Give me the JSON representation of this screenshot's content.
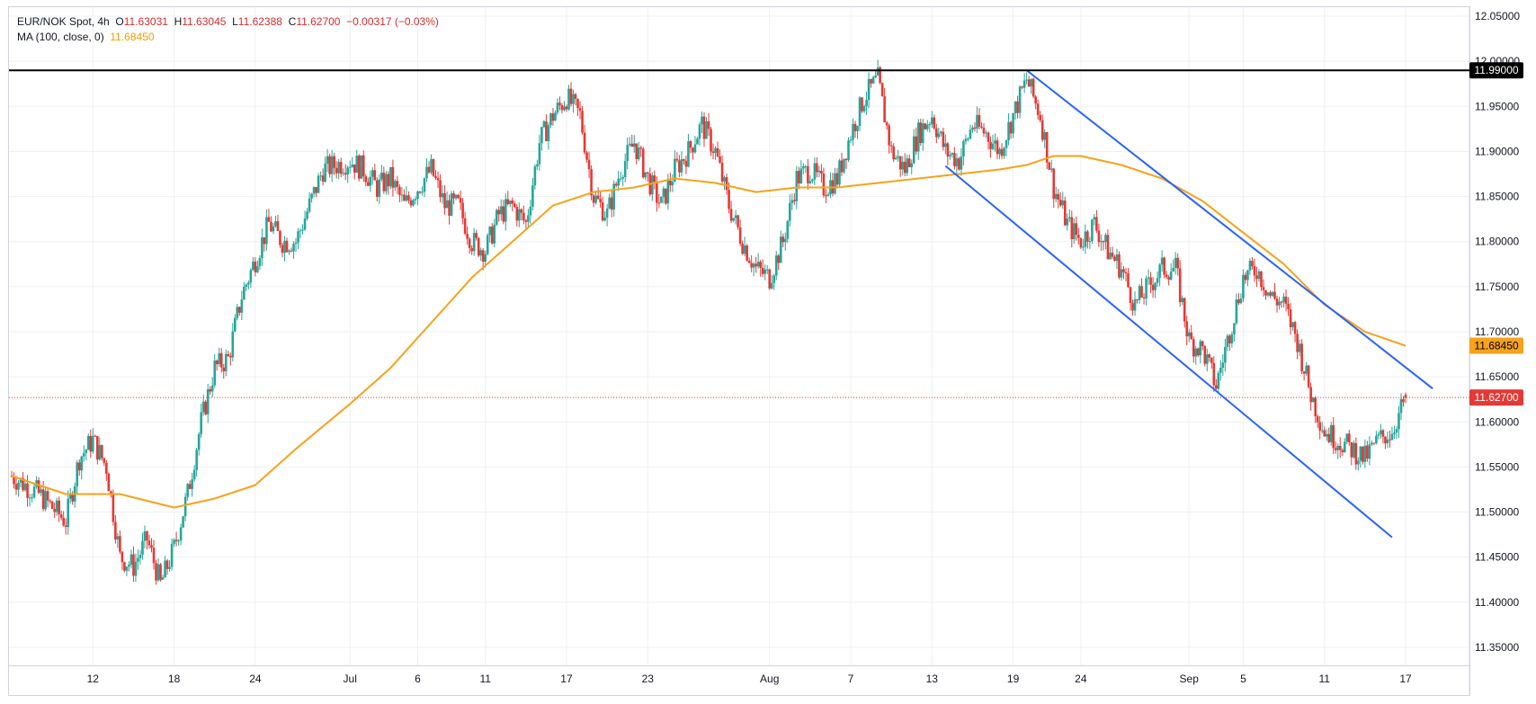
{
  "header": {
    "symbol": "EUR/NOK Spot",
    "interval": "4h",
    "open_label": "O",
    "open": "11.63031",
    "high_label": "H",
    "high": "11.63045",
    "low_label": "L",
    "low": "11.62388",
    "close_label": "C",
    "close": "11.62700",
    "change": "−0.00317 (−0.03%)",
    "ma_label": "MA (100, close, 0)",
    "ma_value": "11.68450"
  },
  "colors": {
    "up": "#26a69a",
    "down": "#e53935",
    "ma": "#f7a21b",
    "channel": "#2962ff",
    "resistance": "#000000",
    "last_price": "#e53935",
    "grid": "#eef0f3",
    "axis_text": "#131722"
  },
  "chart_data": {
    "type": "candlestick",
    "title": "EUR/NOK Spot, 4h",
    "ylim": [
      11.33,
      12.06
    ],
    "y_ticks": [
      "12.05000",
      "12.00000",
      "11.95000",
      "11.90000",
      "11.85000",
      "11.80000",
      "11.75000",
      "11.70000",
      "11.65000",
      "11.60000",
      "11.55000",
      "11.50000",
      "11.45000",
      "11.40000",
      "11.35000"
    ],
    "x_ticks": [
      {
        "label": "12",
        "date": "2024-06-12"
      },
      {
        "label": "18",
        "date": "2024-06-18"
      },
      {
        "label": "24",
        "date": "2024-06-24"
      },
      {
        "label": "Jul",
        "date": "2024-07-01"
      },
      {
        "label": "6",
        "date": "2024-07-06"
      },
      {
        "label": "11",
        "date": "2024-07-11"
      },
      {
        "label": "17",
        "date": "2024-07-17"
      },
      {
        "label": "23",
        "date": "2024-07-23"
      },
      {
        "label": "Aug",
        "date": "2024-08-01"
      },
      {
        "label": "7",
        "date": "2024-08-07"
      },
      {
        "label": "13",
        "date": "2024-08-13"
      },
      {
        "label": "19",
        "date": "2024-08-19"
      },
      {
        "label": "24",
        "date": "2024-08-24"
      },
      {
        "label": "Sep",
        "date": "2024-09-01"
      },
      {
        "label": "5",
        "date": "2024-09-05"
      },
      {
        "label": "11",
        "date": "2024-09-11"
      },
      {
        "label": "17",
        "date": "2024-09-17"
      }
    ],
    "price_path": [
      [
        "2024-06-06",
        11.54
      ],
      [
        "2024-06-08",
        11.52
      ],
      [
        "2024-06-10",
        11.49
      ],
      [
        "2024-06-11",
        11.56
      ],
      [
        "2024-06-12",
        11.58
      ],
      [
        "2024-06-13",
        11.55
      ],
      [
        "2024-06-14",
        11.45
      ],
      [
        "2024-06-15",
        11.44
      ],
      [
        "2024-06-16",
        11.47
      ],
      [
        "2024-06-17",
        11.42
      ],
      [
        "2024-06-18",
        11.46
      ],
      [
        "2024-06-19",
        11.52
      ],
      [
        "2024-06-20",
        11.6
      ],
      [
        "2024-06-21",
        11.66
      ],
      [
        "2024-06-22",
        11.67
      ],
      [
        "2024-06-23",
        11.74
      ],
      [
        "2024-06-25",
        11.82
      ],
      [
        "2024-06-26",
        11.8
      ],
      [
        "2024-06-27",
        11.8
      ],
      [
        "2024-06-28",
        11.84
      ],
      [
        "2024-06-29",
        11.88
      ],
      [
        "2024-07-01",
        11.89
      ],
      [
        "2024-07-02",
        11.88
      ],
      [
        "2024-07-03",
        11.86
      ],
      [
        "2024-07-04",
        11.87
      ],
      [
        "2024-07-05",
        11.84
      ],
      [
        "2024-07-06",
        11.86
      ],
      [
        "2024-07-07",
        11.88
      ],
      [
        "2024-07-08",
        11.84
      ],
      [
        "2024-07-09",
        11.84
      ],
      [
        "2024-07-10",
        11.8
      ],
      [
        "2024-07-11",
        11.79
      ],
      [
        "2024-07-12",
        11.83
      ],
      [
        "2024-07-13",
        11.84
      ],
      [
        "2024-07-14",
        11.82
      ],
      [
        "2024-07-15",
        11.91
      ],
      [
        "2024-07-16",
        11.94
      ],
      [
        "2024-07-17",
        11.96
      ],
      [
        "2024-07-18",
        11.94
      ],
      [
        "2024-07-19",
        11.85
      ],
      [
        "2024-07-20",
        11.83
      ],
      [
        "2024-07-21",
        11.88
      ],
      [
        "2024-07-22",
        11.91
      ],
      [
        "2024-07-23",
        11.87
      ],
      [
        "2024-07-24",
        11.84
      ],
      [
        "2024-07-25",
        11.88
      ],
      [
        "2024-07-26",
        11.9
      ],
      [
        "2024-07-27",
        11.93
      ],
      [
        "2024-07-28",
        11.9
      ],
      [
        "2024-07-29",
        11.84
      ],
      [
        "2024-07-30",
        11.8
      ],
      [
        "2024-07-31",
        11.77
      ],
      [
        "2024-08-01",
        11.76
      ],
      [
        "2024-08-02",
        11.8
      ],
      [
        "2024-08-03",
        11.87
      ],
      [
        "2024-08-04",
        11.88
      ],
      [
        "2024-08-05",
        11.86
      ],
      [
        "2024-08-06",
        11.87
      ],
      [
        "2024-08-07",
        11.92
      ],
      [
        "2024-08-08",
        11.96
      ],
      [
        "2024-08-09",
        11.98
      ],
      [
        "2024-08-10",
        11.9
      ],
      [
        "2024-08-11",
        11.88
      ],
      [
        "2024-08-12",
        11.92
      ],
      [
        "2024-08-13",
        11.94
      ],
      [
        "2024-08-14",
        11.9
      ],
      [
        "2024-08-15",
        11.89
      ],
      [
        "2024-08-16",
        11.93
      ],
      [
        "2024-08-17",
        11.92
      ],
      [
        "2024-08-18",
        11.9
      ],
      [
        "2024-08-19",
        11.94
      ],
      [
        "2024-08-20",
        11.98
      ],
      [
        "2024-08-21",
        11.94
      ],
      [
        "2024-08-22",
        11.86
      ],
      [
        "2024-08-23",
        11.82
      ],
      [
        "2024-08-24",
        11.8
      ],
      [
        "2024-08-25",
        11.82
      ],
      [
        "2024-08-26",
        11.79
      ],
      [
        "2024-08-27",
        11.77
      ],
      [
        "2024-08-28",
        11.73
      ],
      [
        "2024-08-29",
        11.75
      ],
      [
        "2024-08-30",
        11.77
      ],
      [
        "2024-08-31",
        11.77
      ],
      [
        "2024-09-01",
        11.69
      ],
      [
        "2024-09-02",
        11.68
      ],
      [
        "2024-09-03",
        11.64
      ],
      [
        "2024-09-04",
        11.7
      ],
      [
        "2024-09-05",
        11.76
      ],
      [
        "2024-09-06",
        11.77
      ],
      [
        "2024-09-07",
        11.74
      ],
      [
        "2024-09-08",
        11.73
      ],
      [
        "2024-09-09",
        11.69
      ],
      [
        "2024-09-10",
        11.63
      ],
      [
        "2024-09-11",
        11.59
      ],
      [
        "2024-09-12",
        11.58
      ],
      [
        "2024-09-13",
        11.57
      ],
      [
        "2024-09-14",
        11.56
      ],
      [
        "2024-09-15",
        11.58
      ],
      [
        "2024-09-16",
        11.59
      ],
      [
        "2024-09-17",
        11.627
      ]
    ],
    "ma100_path": [
      [
        "2024-06-06",
        11.54
      ],
      [
        "2024-06-10",
        11.52
      ],
      [
        "2024-06-14",
        11.52
      ],
      [
        "2024-06-18",
        11.505
      ],
      [
        "2024-06-21",
        11.515
      ],
      [
        "2024-06-24",
        11.53
      ],
      [
        "2024-06-27",
        11.57
      ],
      [
        "2024-07-01",
        11.62
      ],
      [
        "2024-07-04",
        11.66
      ],
      [
        "2024-07-07",
        11.71
      ],
      [
        "2024-07-10",
        11.76
      ],
      [
        "2024-07-13",
        11.8
      ],
      [
        "2024-07-16",
        11.84
      ],
      [
        "2024-07-19",
        11.855
      ],
      [
        "2024-07-22",
        11.86
      ],
      [
        "2024-07-25",
        11.87
      ],
      [
        "2024-07-28",
        11.865
      ],
      [
        "2024-07-31",
        11.855
      ],
      [
        "2024-08-03",
        11.86
      ],
      [
        "2024-08-06",
        11.86
      ],
      [
        "2024-08-09",
        11.865
      ],
      [
        "2024-08-12",
        11.87
      ],
      [
        "2024-08-15",
        11.875
      ],
      [
        "2024-08-18",
        11.88
      ],
      [
        "2024-08-20",
        11.885
      ],
      [
        "2024-08-22",
        11.895
      ],
      [
        "2024-08-24",
        11.895
      ],
      [
        "2024-08-27",
        11.885
      ],
      [
        "2024-08-30",
        11.87
      ],
      [
        "2024-09-02",
        11.845
      ],
      [
        "2024-09-05",
        11.81
      ],
      [
        "2024-09-08",
        11.775
      ],
      [
        "2024-09-11",
        11.73
      ],
      [
        "2024-09-14",
        11.7
      ],
      [
        "2024-09-17",
        11.6845
      ]
    ],
    "channel_upper": [
      [
        "2024-08-20",
        11.99
      ],
      [
        "2024-09-19",
        11.637
      ]
    ],
    "channel_lower": [
      [
        "2024-08-14",
        11.884
      ],
      [
        "2024-09-16",
        11.472
      ]
    ],
    "resistance": 11.99,
    "resistance_label": "11.99000",
    "ma_last_label": "11.68450",
    "last_price": 11.627,
    "last_price_label": "11.62700",
    "grid": true
  }
}
